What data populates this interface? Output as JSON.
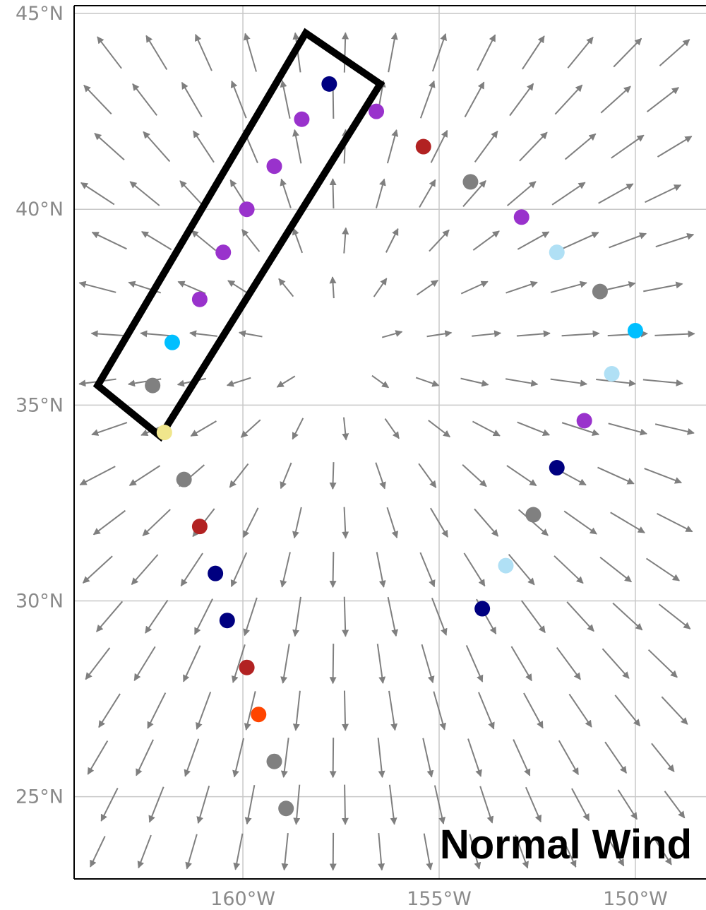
{
  "map": {
    "title": "Normal Wind",
    "lat_ticks": [
      {
        "value": 45,
        "label": "45°N"
      },
      {
        "value": 40,
        "label": "40°N"
      },
      {
        "value": 35,
        "label": "35°N"
      },
      {
        "value": 30,
        "label": "30°N"
      },
      {
        "value": 25,
        "label": "25°N"
      }
    ],
    "lon_ticks": [
      {
        "value": -160,
        "label": "160°W"
      },
      {
        "value": -155,
        "label": "155°W"
      },
      {
        "value": -150,
        "label": "150°W"
      }
    ],
    "extent": {
      "lon_min": -164.3,
      "lon_max": -148.2,
      "lat_min": 22.9,
      "lat_max": 45.2
    },
    "wind_field": {
      "center": {
        "lon": -157.6,
        "lat": 36.4
      },
      "lon_start": -163.7,
      "lon_step": 1.2,
      "lon_count": 13,
      "lat_start": 23.6,
      "lat_step": 1.2,
      "lat_count": 18,
      "arrow_color": "#7f7f7f"
    },
    "selection_box": {
      "corners": [
        {
          "lon": -158.4,
          "lat": 44.5
        },
        {
          "lon": -156.5,
          "lat": 43.2
        },
        {
          "lon": -162.1,
          "lat": 34.2
        },
        {
          "lon": -163.7,
          "lat": 35.5
        }
      ],
      "color": "#000000"
    },
    "observations": [
      {
        "lon": -157.8,
        "lat": 43.2,
        "color": "#000080"
      },
      {
        "lon": -156.6,
        "lat": 42.5,
        "color": "#9932cc"
      },
      {
        "lon": -155.4,
        "lat": 41.6,
        "color": "#b22222"
      },
      {
        "lon": -158.5,
        "lat": 42.3,
        "color": "#9932cc"
      },
      {
        "lon": -159.2,
        "lat": 41.1,
        "color": "#9932cc"
      },
      {
        "lon": -154.2,
        "lat": 40.7,
        "color": "#808080"
      },
      {
        "lon": -159.9,
        "lat": 40.0,
        "color": "#9932cc"
      },
      {
        "lon": -152.9,
        "lat": 39.8,
        "color": "#9932cc"
      },
      {
        "lon": -160.5,
        "lat": 38.9,
        "color": "#9932cc"
      },
      {
        "lon": -152.0,
        "lat": 38.9,
        "color": "#b0e0f5"
      },
      {
        "lon": -150.9,
        "lat": 37.9,
        "color": "#808080"
      },
      {
        "lon": -161.1,
        "lat": 37.7,
        "color": "#9932cc"
      },
      {
        "lon": -150.0,
        "lat": 36.9,
        "color": "#00bfff"
      },
      {
        "lon": -161.8,
        "lat": 36.6,
        "color": "#00bfff"
      },
      {
        "lon": -150.6,
        "lat": 35.8,
        "color": "#b0e0f5"
      },
      {
        "lon": -162.3,
        "lat": 35.5,
        "color": "#808080"
      },
      {
        "lon": -151.3,
        "lat": 34.6,
        "color": "#9932cc"
      },
      {
        "lon": -162.0,
        "lat": 34.3,
        "color": "#f0e68c"
      },
      {
        "lon": -152.0,
        "lat": 33.4,
        "color": "#000080"
      },
      {
        "lon": -161.5,
        "lat": 33.1,
        "color": "#808080"
      },
      {
        "lon": -152.6,
        "lat": 32.2,
        "color": "#808080"
      },
      {
        "lon": -161.1,
        "lat": 31.9,
        "color": "#b22222"
      },
      {
        "lon": -153.3,
        "lat": 30.9,
        "color": "#b0e0f5"
      },
      {
        "lon": -160.7,
        "lat": 30.7,
        "color": "#000080"
      },
      {
        "lon": -153.9,
        "lat": 29.8,
        "color": "#000080"
      },
      {
        "lon": -160.4,
        "lat": 29.5,
        "color": "#000080"
      },
      {
        "lon": -159.9,
        "lat": 28.3,
        "color": "#b22222"
      },
      {
        "lon": -159.6,
        "lat": 27.1,
        "color": "#ff4500"
      },
      {
        "lon": -159.2,
        "lat": 25.9,
        "color": "#808080"
      },
      {
        "lon": -158.9,
        "lat": 24.7,
        "color": "#808080"
      }
    ]
  }
}
